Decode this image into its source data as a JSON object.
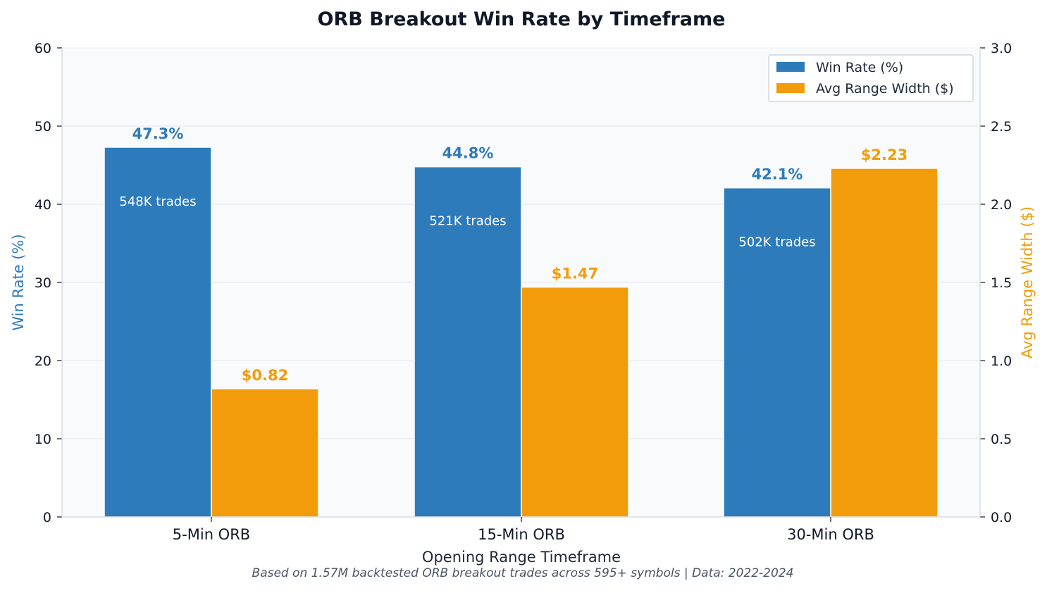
{
  "chart_data": {
    "type": "bar",
    "title": "ORB Breakout Win Rate by Timeframe",
    "xlabel": "Opening Range Timeframe",
    "ylabel": "Win Rate (%)",
    "y2label": "Avg Range Width ($)",
    "footnote": "Based on 1.57M backtested ORB breakout trades across 595+ symbols | Data: 2022-2024",
    "categories": [
      "5-Min ORB",
      "15-Min ORB",
      "30-Min ORB"
    ],
    "ylim": [
      0,
      60
    ],
    "y2lim": [
      0,
      3.0
    ],
    "yticks": [
      "0",
      "10",
      "20",
      "30",
      "40",
      "50",
      "60"
    ],
    "y2ticks": [
      "0.0",
      "0.5",
      "1.0",
      "1.5",
      "2.0",
      "2.5",
      "3.0"
    ],
    "grid": true,
    "legend_position": "top-right",
    "series": [
      {
        "name": "Win Rate (%)",
        "axis": "left",
        "color": "#2e7bbb",
        "values": [
          47.3,
          44.8,
          42.1
        ],
        "labels": [
          "47.3%",
          "44.8%",
          "42.1%"
        ],
        "inner_labels": [
          "548K trades",
          "521K trades",
          "502K trades"
        ]
      },
      {
        "name": "Avg Range Width ($)",
        "axis": "right",
        "color": "#f39c0b",
        "values": [
          0.82,
          1.47,
          2.23
        ],
        "labels": [
          "$0.82",
          "$1.47",
          "$2.23"
        ]
      }
    ]
  }
}
